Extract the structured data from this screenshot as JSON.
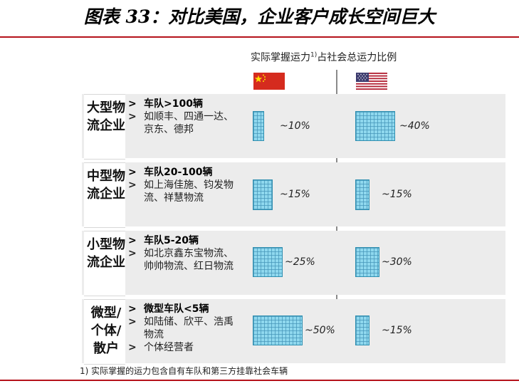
{
  "title": "图表 33：对比美国，企业客户成长空间巨大",
  "column_header": {
    "text": "实际掌握运力",
    "superscript": "1)",
    "suffix": "占社会总运力比例"
  },
  "flags": {
    "china": "china-flag-icon",
    "usa": "usa-flag-icon"
  },
  "rows": [
    {
      "label": "大型物流企业",
      "bullets": [
        {
          "text": "车队>100辆",
          "bold": true
        },
        {
          "text": "如顺丰、四通一达、京东、德邦",
          "bold": false
        }
      ],
      "china_share": "~10%",
      "usa_share": "~40%"
    },
    {
      "label": "中型物流企业",
      "bullets": [
        {
          "text": "车队20-100辆",
          "bold": true
        },
        {
          "text": "如上海佳施、钧发物流、祥慧物流",
          "bold": false
        }
      ],
      "china_share": "~15%",
      "usa_share": "~15%"
    },
    {
      "label": "小型物流企业",
      "bullets": [
        {
          "text": "车队5-20辆",
          "bold": true
        },
        {
          "text": "如北京鑫东宝物流、帅帅物流、红日物流",
          "bold": false
        }
      ],
      "china_share": "~25%",
      "usa_share": "~30%"
    },
    {
      "label": "微型/个体/散户",
      "bullets": [
        {
          "text": "微型车队<5辆",
          "bold": true
        },
        {
          "text": "如陆储、欣平、浩禹物流",
          "bold": false
        },
        {
          "text": "个体经营者",
          "bold": false
        }
      ],
      "china_share": "~50%",
      "usa_share": "~15%"
    }
  ],
  "footnote": "1) 实际掌握的运力包含自有车队和第三方挂靠社会车辆",
  "colors": {
    "accent_red": "#b5121b",
    "block_fill": "#8fd8ee",
    "block_grid": "#4696b9"
  }
}
